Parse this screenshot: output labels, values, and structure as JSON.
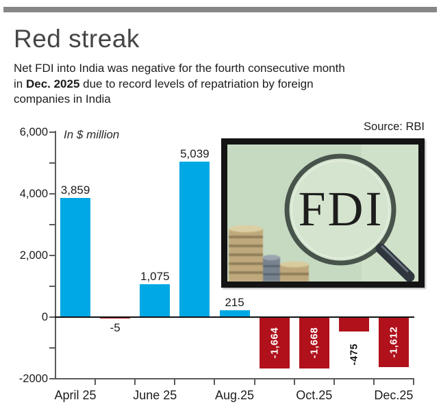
{
  "header": {
    "title": "Red streak",
    "subtitle_prefix": "Net FDI into India was negative for the fourth consecutive month in ",
    "subtitle_bold": "Dec. 2025",
    "subtitle_suffix": " due to record levels of repatriation by foreign companies in India"
  },
  "chart": {
    "unit_label": "In $ million",
    "source_label": "Source: RBI",
    "colors": {
      "positive_bar": "#00a8e4",
      "negative_bar": "#b0111b",
      "negative_label_text": "#ffffff",
      "accent_bar": "#878787",
      "axis": "#5a5a5a",
      "zero_line": "#111111",
      "text": "#1c1c1c"
    }
  },
  "photo": {
    "lens_text": "FDI"
  },
  "chart_data": {
    "type": "bar",
    "title": "Red streak",
    "ylabel": "In $ million",
    "source": "Source: RBI",
    "ylim": [
      -2000,
      6000
    ],
    "grid": false,
    "y_ticks": [
      {
        "value": 6000,
        "label": "6,000"
      },
      {
        "value": 5000,
        "label": ""
      },
      {
        "value": 4000,
        "label": "4,000"
      },
      {
        "value": 3000,
        "label": ""
      },
      {
        "value": 2000,
        "label": "2,000"
      },
      {
        "value": 1000,
        "label": ""
      },
      {
        "value": 0,
        "label": "0"
      },
      {
        "value": -1000,
        "label": ""
      },
      {
        "value": -2000,
        "label": "-2000"
      }
    ],
    "bars": [
      {
        "x_label": "April 25",
        "value": 3859,
        "value_label": "3,859",
        "label_style": "above"
      },
      {
        "x_label": "",
        "value": -5,
        "value_label": "-5",
        "label_style": "below"
      },
      {
        "x_label": "June 25",
        "value": 1075,
        "value_label": "1,075",
        "label_style": "above"
      },
      {
        "x_label": "",
        "value": 5039,
        "value_label": "5,039",
        "label_style": "above"
      },
      {
        "x_label": "Aug.25",
        "value": 215,
        "value_label": "215",
        "label_style": "above"
      },
      {
        "x_label": "",
        "value": -1664,
        "value_label": "-1,664",
        "label_style": "inside-rotated"
      },
      {
        "x_label": "Oct.25",
        "value": -1668,
        "value_label": "-1,668",
        "label_style": "inside-rotated"
      },
      {
        "x_label": "",
        "value": -475,
        "value_label": "-475",
        "label_style": "below-rotated"
      },
      {
        "x_label": "Dec.25",
        "value": -1612,
        "value_label": "-1,612",
        "label_style": "inside-rotated"
      }
    ]
  }
}
